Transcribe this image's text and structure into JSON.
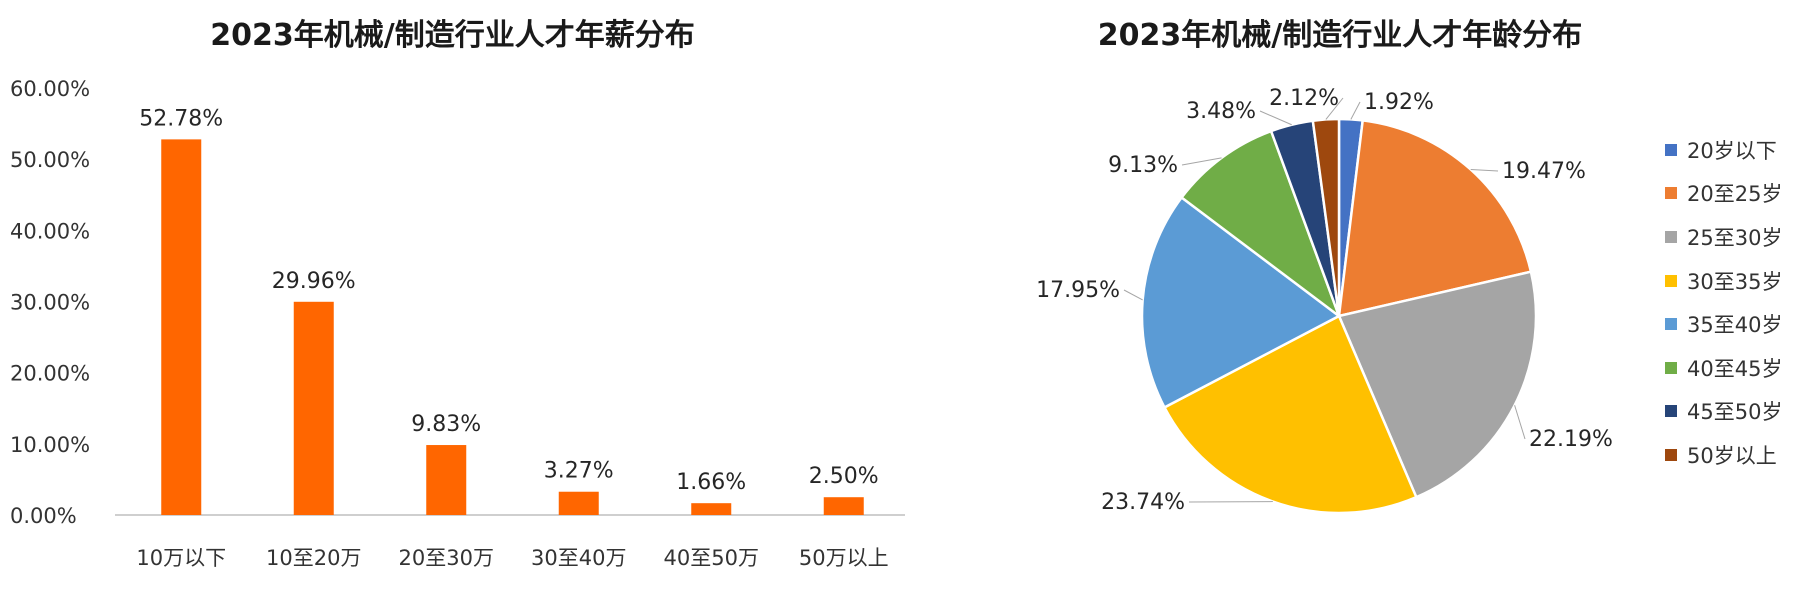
{
  "chart_data": [
    {
      "type": "bar",
      "title": "2023年机械/制造行业人才年薪分布",
      "categories": [
        "10万以下",
        "10至20万",
        "20至30万",
        "30至40万",
        "40至50万",
        "50万以上"
      ],
      "values": [
        52.78,
        29.96,
        9.83,
        3.27,
        1.66,
        2.5
      ],
      "data_labels": [
        "52.78%",
        "29.96%",
        "9.83%",
        "3.27%",
        "1.66%",
        "2.50%"
      ],
      "ylim": [
        0,
        60
      ],
      "yticks": [
        "0.00%",
        "10.00%",
        "20.00%",
        "30.00%",
        "40.00%",
        "50.00%",
        "60.00%"
      ],
      "color": "#FF6600",
      "grid": false
    },
    {
      "type": "pie",
      "title": "2023年机械/制造行业人才年龄分布",
      "labels": [
        "20岁以下",
        "20至25岁",
        "25至30岁",
        "30至35岁",
        "35至40岁",
        "40至45岁",
        "45至50岁",
        "50岁以上"
      ],
      "values": [
        1.92,
        19.47,
        22.19,
        23.74,
        17.95,
        9.13,
        3.48,
        2.12
      ],
      "data_labels": [
        "1.92%",
        "19.47%",
        "22.19%",
        "23.74%",
        "17.95%",
        "9.13%",
        "3.48%",
        "2.12%"
      ],
      "colors": [
        "#4472C4",
        "#ED7D31",
        "#A5A5A5",
        "#FFC000",
        "#5B9BD5",
        "#70AD47",
        "#264478",
        "#9E480E"
      ],
      "legend_position": "right"
    }
  ]
}
